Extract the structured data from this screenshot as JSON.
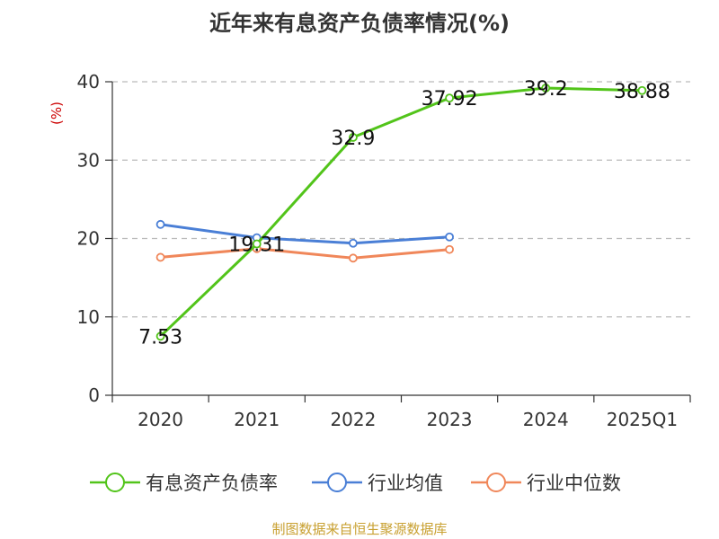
{
  "title": "近年来有息资产负债率情况(%)",
  "source_note": "制图数据来自恒生聚源数据库",
  "chart_data": {
    "type": "line",
    "title": "近年来有息资产负债率情况(%)",
    "xlabel": "",
    "ylabel": "(%)",
    "categories": [
      "2020",
      "2021",
      "2022",
      "2023",
      "2024",
      "2025Q1"
    ],
    "ylim": [
      0,
      40
    ],
    "yticks": [
      0,
      10,
      20,
      30,
      40
    ],
    "grid": true,
    "legend_position": "bottom",
    "series": [
      {
        "name": "有息资产负债率",
        "color": "#52c41a",
        "values": [
          7.53,
          19.31,
          32.9,
          37.92,
          39.2,
          38.88
        ],
        "labels": [
          "7.53",
          "19.31",
          "32.9",
          "37.92",
          "39.2",
          "38.88"
        ]
      },
      {
        "name": "行业均值",
        "color": "#4a7fd6",
        "values": [
          21.8,
          20.1,
          19.4,
          20.2,
          null,
          null
        ]
      },
      {
        "name": "行业中位数",
        "color": "#f0875a",
        "values": [
          17.6,
          18.7,
          17.5,
          18.6,
          null,
          null
        ]
      }
    ]
  }
}
